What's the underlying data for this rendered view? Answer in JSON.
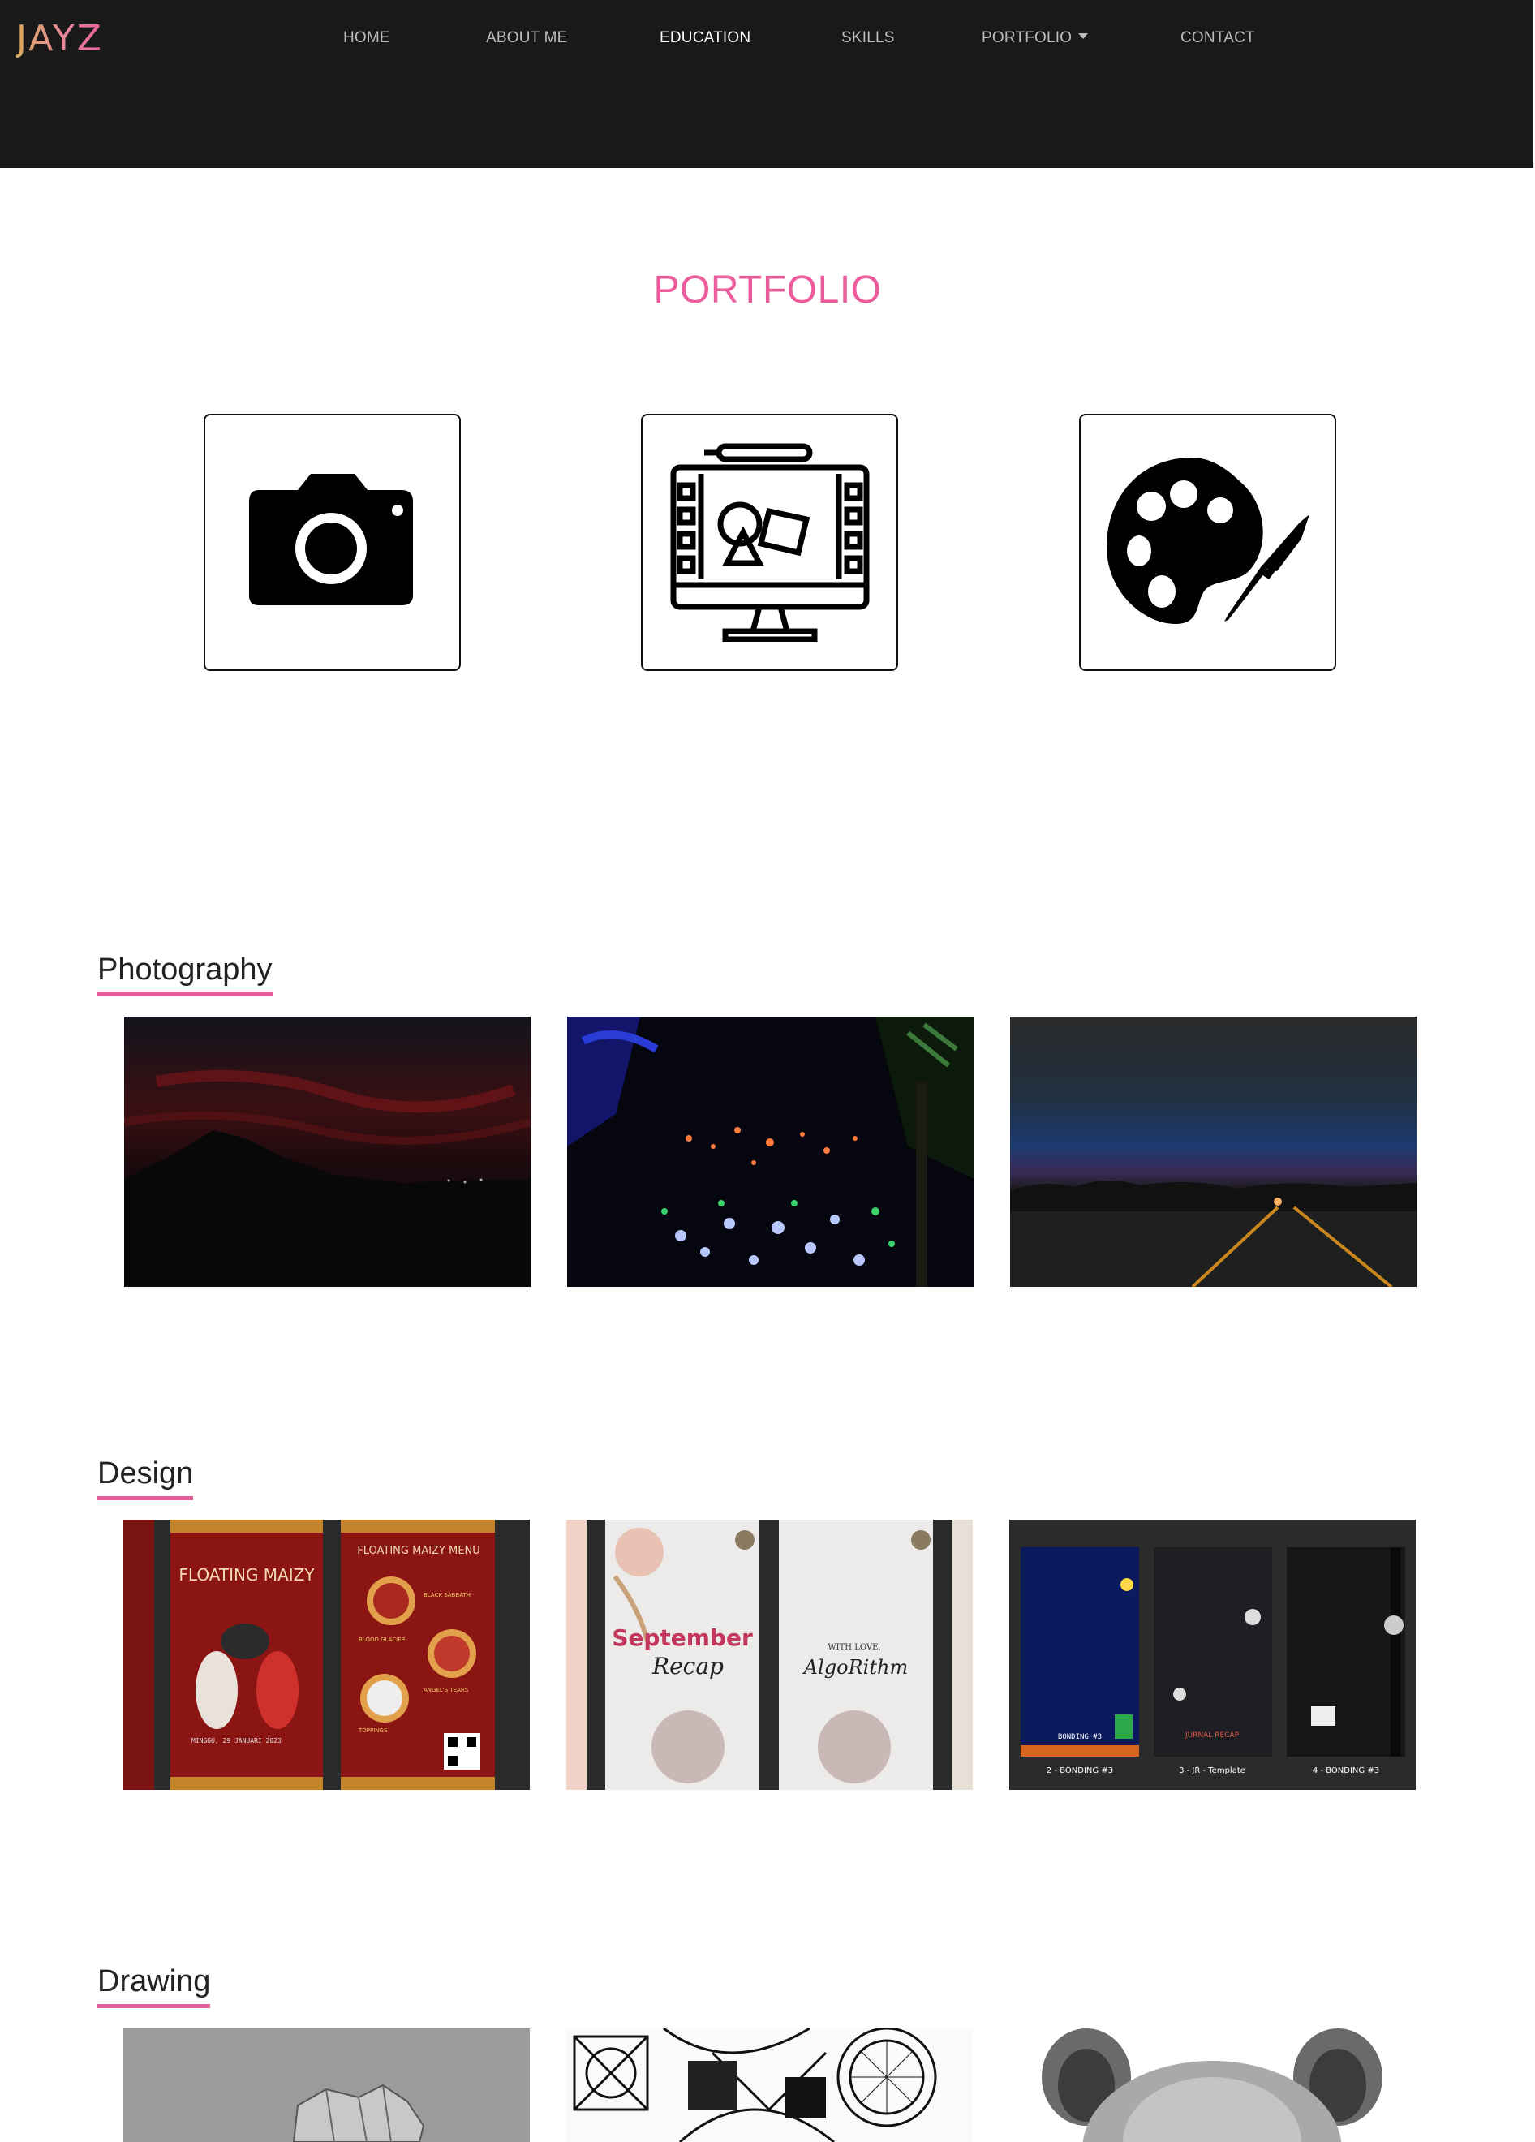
{
  "brand": "JAYZ",
  "nav": {
    "home": "HOME",
    "about": "ABOUT ME",
    "education": "EDUCATION",
    "skills": "SKILLS",
    "portfolio": "PORTFOLIO",
    "contact": "CONTACT"
  },
  "page_title": "PORTFOLIO",
  "categories": [
    {
      "icon": "camera-icon"
    },
    {
      "icon": "design-monitor-icon"
    },
    {
      "icon": "palette-icon"
    }
  ],
  "sections": {
    "photography": {
      "title": "Photography"
    },
    "design": {
      "title": "Design"
    },
    "drawing": {
      "title": "Drawing"
    }
  },
  "design_text": {
    "d1_title": "FLOATING MAIZY",
    "d1_menu": "FLOATING MAIZY MENU",
    "d1_item1": "BLACK SABBATH",
    "d1_item2": "BLOOD GLACIER",
    "d1_item3": "ANGEL'S TEARS",
    "d1_toppings": "TOPPINGS",
    "d1_date": "MINGGU, 29 JANUARI 2023",
    "d2_word1": "September",
    "d2_word2": "Recap",
    "d2_with": "WITH LOVE,",
    "d2_algo": "AlgoRithm",
    "d3_cap1": "2 - BONDING #3",
    "d3_cap2": "3 - JR - Template",
    "d3_cap3": "4 - BONDING #3",
    "d3_panel1": "BONDING #3",
    "d3_panel2": "JURNAL RECAP"
  },
  "colors": {
    "accent": "#e55d9c",
    "navbar_bg": "#191919",
    "title": "#ec5b9c"
  }
}
